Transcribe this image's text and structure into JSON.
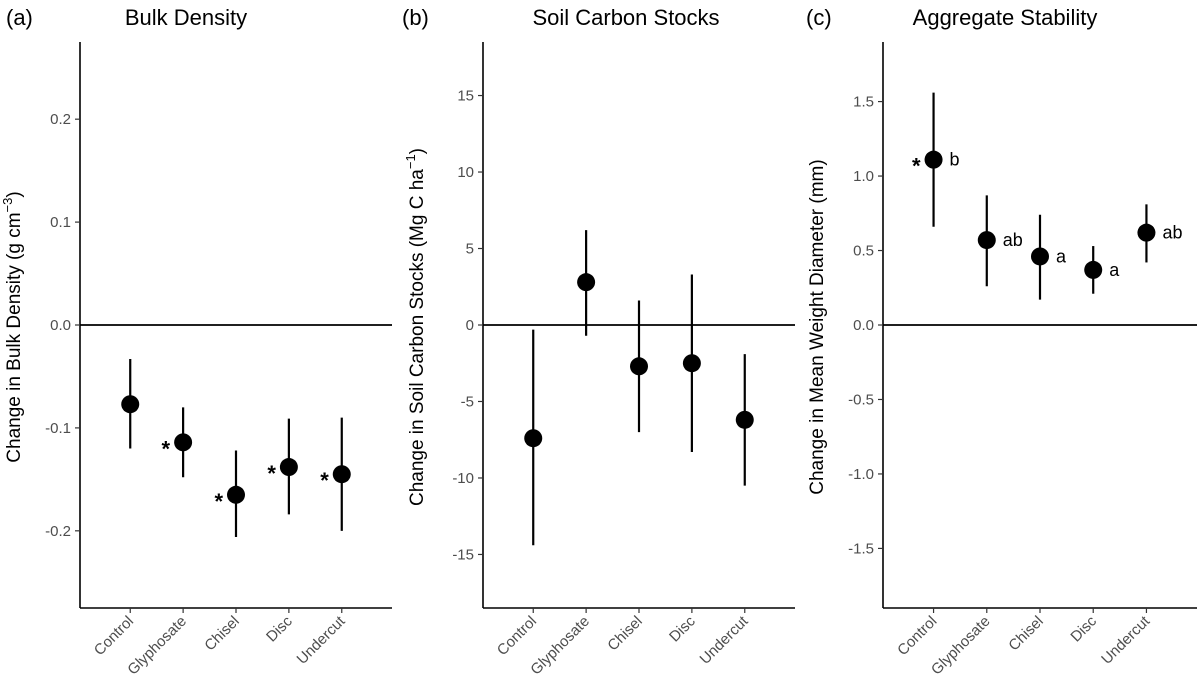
{
  "chart_data": [
    {
      "panel": "(a)",
      "title": "Bulk Density",
      "type": "scatter",
      "ylabel": "Change in Bulk Density (g cm",
      "ylabel_sup": "−3",
      "ylabel_tail": ")",
      "ylim": [
        -0.275,
        0.275
      ],
      "yticks": [
        0.2,
        0.1,
        0.0,
        -0.1,
        -0.2
      ],
      "ytick_labels": [
        "0.2",
        "0.1",
        "0.0",
        "-0.1",
        "-0.2"
      ],
      "reference_line": 0,
      "categories": [
        "Control",
        "Glyphosate",
        "Chisel",
        "Disc",
        "Undercut"
      ],
      "values": [
        -0.077,
        -0.114,
        -0.165,
        -0.138,
        -0.145
      ],
      "lower": [
        -0.12,
        -0.148,
        -0.206,
        -0.184,
        -0.2
      ],
      "upper": [
        -0.033,
        -0.08,
        -0.122,
        -0.091,
        -0.09
      ],
      "star": [
        "",
        "*",
        "*",
        "*",
        "*"
      ],
      "letters": [
        "",
        "",
        "",
        "",
        ""
      ]
    },
    {
      "panel": "(b)",
      "title": "Soil Carbon Stocks",
      "type": "scatter",
      "ylabel": "Change in Soil Carbon Stocks (Mg C ha",
      "ylabel_sup": "−1",
      "ylabel_tail": ")",
      "ylim": [
        -18.5,
        18.5
      ],
      "yticks": [
        15,
        10,
        5,
        0,
        -5,
        -10,
        -15
      ],
      "ytick_labels": [
        "15",
        "10",
        "5",
        "0",
        "-5",
        "-10",
        "-15"
      ],
      "reference_line": 0,
      "categories": [
        "Control",
        "Glyphosate",
        "Chisel",
        "Disc",
        "Undercut"
      ],
      "values": [
        -7.4,
        2.8,
        -2.7,
        -2.5,
        -6.2
      ],
      "lower": [
        -14.4,
        -0.7,
        -7.0,
        -8.3,
        -10.5
      ],
      "upper": [
        -0.3,
        6.2,
        1.6,
        3.3,
        -1.9
      ],
      "star": [
        "",
        "",
        "",
        "",
        ""
      ],
      "letters": [
        "",
        "",
        "",
        "",
        ""
      ]
    },
    {
      "panel": "(c)",
      "title": "Aggregate Stability",
      "type": "scatter",
      "ylabel": "Change in Mean Weight Diameter (mm)",
      "ylabel_sup": "",
      "ylabel_tail": "",
      "ylim": [
        -1.9,
        1.9
      ],
      "yticks": [
        1.5,
        1.0,
        0.5,
        0.0,
        -0.5,
        -1.0,
        -1.5
      ],
      "ytick_labels": [
        "1.5",
        "1.0",
        "0.5",
        "0.0",
        "-0.5",
        "-1.0",
        "-1.5"
      ],
      "reference_line": 0,
      "categories": [
        "Control",
        "Glyphosate",
        "Chisel",
        "Disc",
        "Undercut"
      ],
      "values": [
        1.11,
        0.57,
        0.46,
        0.37,
        0.62
      ],
      "lower": [
        0.66,
        0.26,
        0.17,
        0.21,
        0.42
      ],
      "upper": [
        1.56,
        0.87,
        0.74,
        0.53,
        0.81
      ],
      "star": [
        "*",
        "",
        "",
        "",
        ""
      ],
      "letters": [
        "b",
        "ab",
        "a",
        "a",
        "ab"
      ]
    }
  ]
}
